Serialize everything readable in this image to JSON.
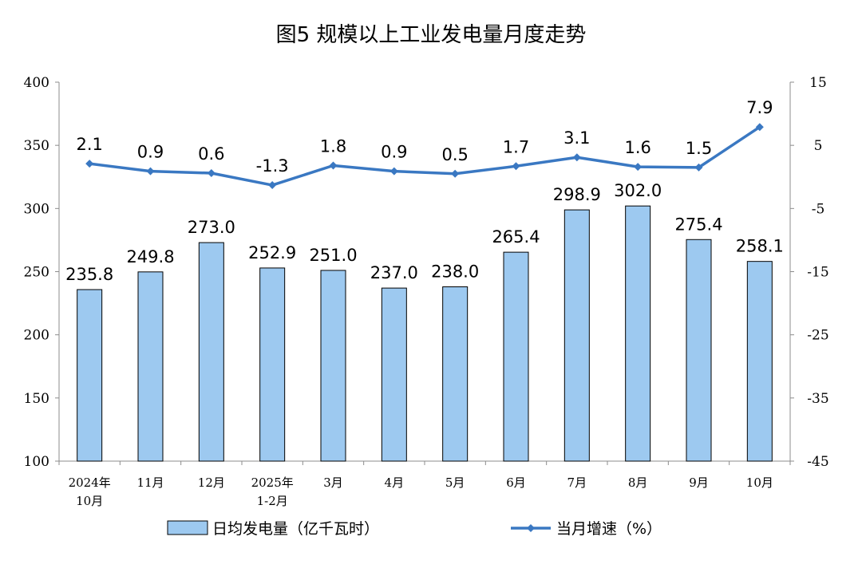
{
  "chart_data": {
    "type": "bar",
    "title": "图5  规模以上工业发电量月度走势",
    "categories": [
      [
        "2024年",
        "10月"
      ],
      [
        "11月"
      ],
      [
        "12月"
      ],
      [
        "2025年",
        "1-2月"
      ],
      [
        "3月"
      ],
      [
        "4月"
      ],
      [
        "5月"
      ],
      [
        "6月"
      ],
      [
        "7月"
      ],
      [
        "8月"
      ],
      [
        "9月"
      ],
      [
        "10月"
      ]
    ],
    "series": [
      {
        "name": "日均发电量（亿千瓦时）",
        "type": "bar",
        "axis": "left",
        "color": "#9dc9f0",
        "values": [
          235.8,
          249.8,
          273.0,
          252.9,
          251.0,
          237.0,
          238.0,
          265.4,
          298.9,
          302.0,
          275.4,
          258.1
        ],
        "labels": [
          "235.8",
          "249.8",
          "273.0",
          "252.9",
          "251.0",
          "237.0",
          "238.0",
          "265.4",
          "298.9",
          "302.0",
          "275.4",
          "258.1"
        ]
      },
      {
        "name": "当月增速（%）",
        "type": "line",
        "axis": "right",
        "color": "#3a78c2",
        "values": [
          2.1,
          0.9,
          0.6,
          -1.3,
          1.8,
          0.9,
          0.5,
          1.7,
          3.1,
          1.6,
          1.5,
          7.9
        ],
        "labels": [
          "2.1",
          "0.9",
          "0.6",
          "-1.3",
          "1.8",
          "0.9",
          "0.5",
          "1.7",
          "3.1",
          "1.6",
          "1.5",
          "7.9"
        ]
      }
    ],
    "y_left": {
      "min": 100,
      "max": 400,
      "ticks": [
        100,
        150,
        200,
        250,
        300,
        350,
        400
      ]
    },
    "y_right": {
      "min": -45,
      "max": 15,
      "ticks": [
        -45,
        -35,
        -25,
        -15,
        -5,
        5,
        15
      ]
    },
    "legend": {
      "position": "bottom"
    },
    "grid": false
  }
}
